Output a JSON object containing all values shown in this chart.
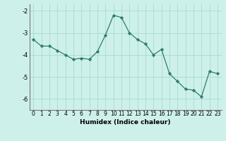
{
  "x": [
    0,
    1,
    2,
    3,
    4,
    5,
    6,
    7,
    8,
    9,
    10,
    11,
    12,
    13,
    14,
    15,
    16,
    17,
    18,
    19,
    20,
    21,
    22,
    23
  ],
  "y": [
    -3.3,
    -3.6,
    -3.6,
    -3.8,
    -4.0,
    -4.2,
    -4.15,
    -4.2,
    -3.85,
    -3.1,
    -2.2,
    -2.3,
    -3.0,
    -3.3,
    -3.5,
    -4.0,
    -3.75,
    -4.85,
    -5.2,
    -5.55,
    -5.6,
    -5.9,
    -4.75,
    -4.85
  ],
  "line_color": "#2e7d6e",
  "marker": "D",
  "marker_size": 2.2,
  "bg_color": "#cef0ea",
  "grid_color": "#aaddd6",
  "xlabel": "Humidex (Indice chaleur)",
  "ylim": [
    -6.5,
    -1.7
  ],
  "xlim": [
    -0.5,
    23.5
  ],
  "yticks": [
    -6,
    -5,
    -4,
    -3,
    -2
  ],
  "xticks": [
    0,
    1,
    2,
    3,
    4,
    5,
    6,
    7,
    8,
    9,
    10,
    11,
    12,
    13,
    14,
    15,
    16,
    17,
    18,
    19,
    20,
    21,
    22,
    23
  ],
  "tick_fontsize": 5.5,
  "xlabel_fontsize": 6.5,
  "spine_color": "#777777"
}
